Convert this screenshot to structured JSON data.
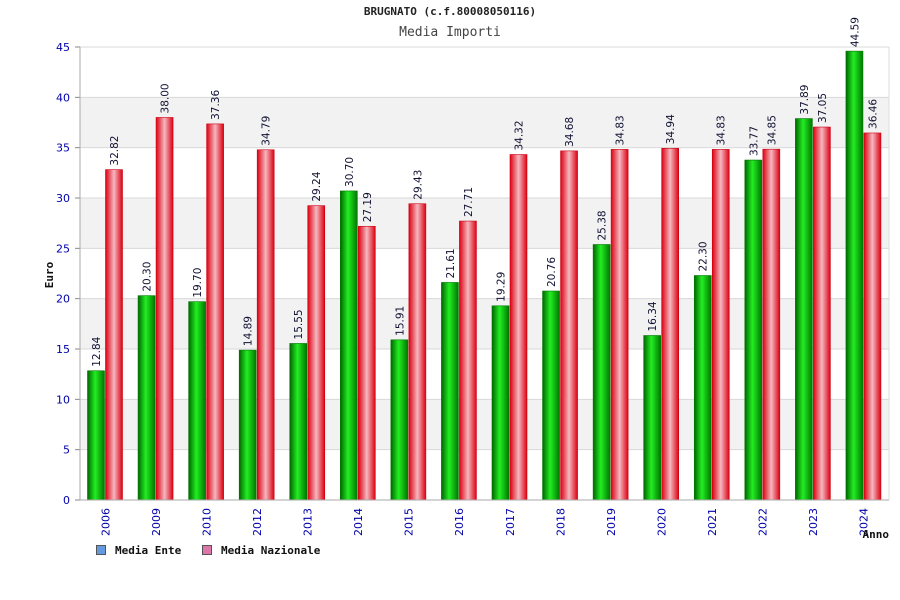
{
  "chart_data": {
    "type": "bar",
    "title": "BRUGNATO (c.f.80008050116)",
    "subtitle": "Media Importi",
    "xlabel": "Anno",
    "ylabel": "Euro",
    "ylim": [
      0,
      45
    ],
    "yticks": [
      "0",
      "5",
      "10",
      "15",
      "20",
      "25",
      "30",
      "35",
      "40",
      "45"
    ],
    "grid": true,
    "legend_position": "bottom-left",
    "categories": [
      "2006",
      "2009",
      "2010",
      "2012",
      "2013",
      "2014",
      "2015",
      "2016",
      "2017",
      "2018",
      "2019",
      "2020",
      "2021",
      "2022",
      "2023",
      "2024"
    ],
    "series": [
      {
        "name": "Media Ente",
        "color": "#00aa00",
        "values": [
          12.84,
          20.3,
          19.7,
          14.89,
          15.55,
          30.7,
          15.91,
          21.61,
          19.29,
          20.76,
          25.38,
          16.34,
          22.3,
          33.77,
          37.89,
          44.59
        ],
        "labels": [
          "12.84",
          "20.30",
          "19.70",
          "14.89",
          "15.55",
          "30.70",
          "15.91",
          "21.61",
          "19.29",
          "20.76",
          "25.38",
          "16.34",
          "22.30",
          "33.77",
          "37.89",
          "44.59"
        ]
      },
      {
        "name": "Media Nazionale",
        "color": "#ee2233",
        "values": [
          32.82,
          38.0,
          37.36,
          34.79,
          29.24,
          27.19,
          29.43,
          27.71,
          34.32,
          34.68,
          34.83,
          34.94,
          34.83,
          34.85,
          37.05,
          36.46
        ],
        "labels": [
          "32.82",
          "38.00",
          "37.36",
          "34.79",
          "29.24",
          "27.19",
          "29.43",
          "27.71",
          "34.32",
          "34.68",
          "34.83",
          "34.94",
          "34.83",
          "34.85",
          "37.05",
          "36.46"
        ]
      }
    ]
  },
  "legend": {
    "ente_label": "Media Ente",
    "ente_swatch_color": "#6699dd",
    "nazionale_label": "Media Nazionale",
    "nazionale_swatch_color": "#dd77aa"
  }
}
